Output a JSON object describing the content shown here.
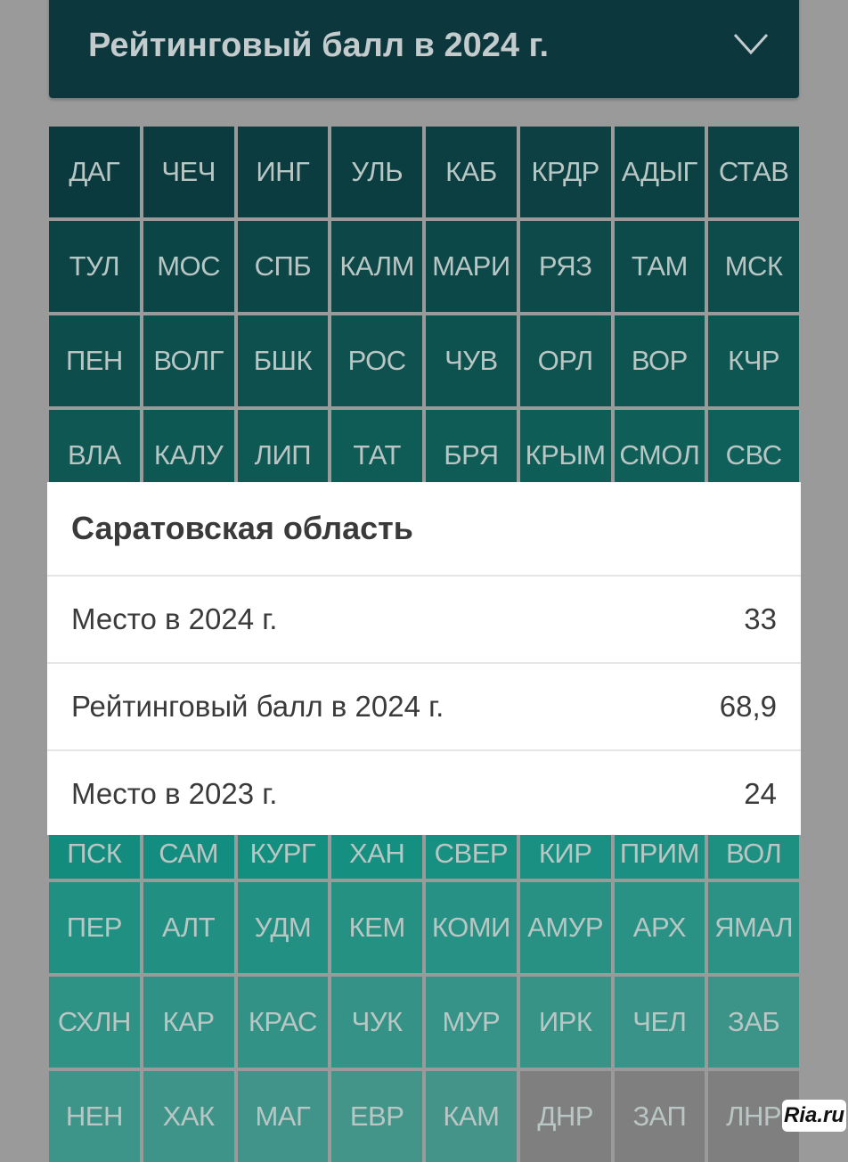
{
  "dropdown": {
    "label": "Рейтинговый балл в 2024 г.",
    "icon": "chevron-down-icon"
  },
  "grid": {
    "tiles": [
      "ДАГ",
      "ЧЕЧ",
      "ИНГ",
      "УЛЬ",
      "КАБ",
      "КРДР",
      "АДЫГ",
      "СТАВ",
      "ТУЛ",
      "МОС",
      "СПБ",
      "КАЛМ",
      "МАРИ",
      "РЯЗ",
      "ТАМ",
      "МСК",
      "ПЕН",
      "ВОЛГ",
      "БШК",
      "РОС",
      "ЧУВ",
      "ОРЛ",
      "ВОР",
      "КЧР",
      "ВЛА",
      "КАЛУ",
      "ЛИП",
      "ТАТ",
      "БРЯ",
      "КРЫМ",
      "СМОЛ",
      "СВС",
      "",
      "",
      "",
      "",
      "",
      "",
      "",
      "",
      "",
      "",
      "",
      "",
      "",
      "",
      "",
      "",
      "",
      "",
      "",
      "",
      "",
      "",
      "",
      "",
      "ПСК",
      "САМ",
      "КУРГ",
      "ХАН",
      "СВЕР",
      "КИР",
      "ПРИМ",
      "ВОЛ",
      "ПЕР",
      "АЛТ",
      "УДМ",
      "КЕМ",
      "КОМИ",
      "АМУР",
      "АРХ",
      "ЯМАЛ",
      "СХЛН",
      "КАР",
      "КРАС",
      "ЧУК",
      "МУР",
      "ИРК",
      "ЧЕЛ",
      "ЗАБ",
      "НЕН",
      "ХАК",
      "МАГ",
      "ЕВР",
      "КАМ",
      "ДНР",
      "ЗАП",
      "ЛНР"
    ],
    "no_data": [
      "ДНР",
      "ЗАП",
      "ЛНР"
    ],
    "color_scale": [
      "#0b3a3e",
      "#0f5d57",
      "#138f80",
      "#4b958b"
    ],
    "no_data_color": "#7f7f7f"
  },
  "popup": {
    "title": "Саратовская область",
    "rows": [
      {
        "label": "Место в 2024 г.",
        "value": "33"
      },
      {
        "label": "Рейтинговый балл в 2024 г.",
        "value": "68,9"
      },
      {
        "label": "Место в 2023 г.",
        "value": "24"
      }
    ]
  },
  "watermark": "Ria.ru"
}
